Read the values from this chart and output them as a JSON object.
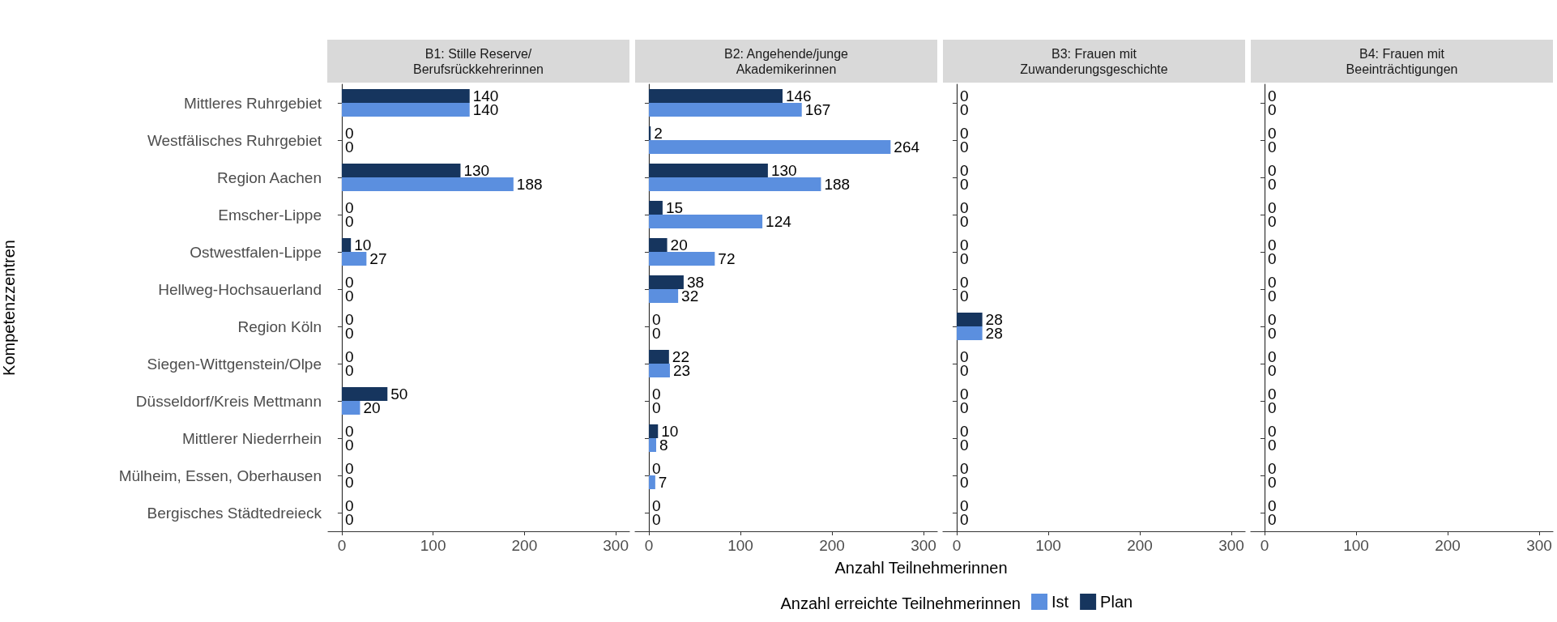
{
  "chart_data": [
    {
      "type": "bar",
      "orientation": "horizontal",
      "title": "B1: Stille Reserve/\nBerufsrückkehrerinnen",
      "ylabel": "Kompetenzzentren",
      "legend_title": "Anzahl erreichte Teilnehmerinnen",
      "legend": "bottom",
      "data_labels": true,
      "categories": [
        "Mittleres Ruhrgebiet",
        "Westfälisches Ruhrgebiet",
        "Region Aachen",
        "Emscher-Lippe",
        "Ostwestfalen-Lippe",
        "Hellweg-Hochsauerland",
        "Region Köln",
        "Siegen-Wittgenstein/Olpe",
        "Düsseldorf/Kreis Mettmann",
        "Mittlerer Niederrhein",
        "Mülheim, Essen, Oberhausen",
        "Bergisches Städtedreieck"
      ],
      "series": [
        {
          "name": "Ist",
          "color": "#5b8fdf",
          "values": [
            140,
            0,
            188,
            0,
            27,
            0,
            0,
            0,
            20,
            0,
            0,
            0
          ]
        },
        {
          "name": "Plan",
          "color": "#16355e",
          "values": [
            140,
            0,
            130,
            0,
            10,
            0,
            0,
            0,
            50,
            0,
            0,
            0
          ]
        }
      ],
      "xlim": [
        -15,
        315
      ],
      "xticks": [
        0,
        100,
        200,
        300
      ]
    },
    {
      "type": "bar",
      "orientation": "horizontal",
      "title": "B2: Angehende/junge\nAkademikerinnen",
      "xlabel": "Anzahl Teilnehmerinnen",
      "data_labels": true,
      "tick_labels": "x",
      "categories": [
        null,
        null,
        null,
        null,
        null,
        null,
        null,
        null,
        null,
        null,
        null,
        null
      ],
      "series": [
        {
          "color": "#5b8fdf",
          "values": [
            167,
            264,
            188,
            124,
            72,
            32,
            0,
            23,
            0,
            8,
            7,
            0
          ]
        },
        {
          "color": "#16355e",
          "values": [
            146,
            2,
            130,
            15,
            20,
            38,
            0,
            22,
            0,
            10,
            0,
            0
          ]
        }
      ],
      "xlim": [
        -15,
        315
      ],
      "xticks": [
        0,
        100,
        200,
        300
      ]
    },
    {
      "type": "bar",
      "orientation": "horizontal",
      "title": "B3: Frauen mit\nZuwanderungsgeschichte",
      "data_labels": true,
      "tick_labels": "x",
      "categories": [
        null,
        null,
        null,
        null,
        null,
        null,
        null,
        null,
        null,
        null,
        null,
        null
      ],
      "series": [
        {
          "color": "#5b8fdf",
          "values": [
            0,
            0,
            0,
            0,
            0,
            0,
            28,
            0,
            0,
            0,
            0,
            0
          ]
        },
        {
          "color": "#16355e",
          "values": [
            0,
            0,
            0,
            0,
            0,
            0,
            28,
            0,
            0,
            0,
            0,
            0
          ]
        }
      ],
      "xlim": [
        -15,
        315
      ],
      "xticks": [
        0,
        100,
        200,
        300
      ]
    },
    {
      "type": "bar",
      "orientation": "horizontal",
      "title": "B4: Frauen mit\nBeeinträchtigungen",
      "data_labels": true,
      "tick_labels": "x",
      "categories": [
        null,
        null,
        null,
        null,
        null,
        null,
        null,
        null,
        null,
        null,
        null,
        null
      ],
      "series": [
        {
          "color": "#5b8fdf",
          "values": [
            0,
            0,
            0,
            0,
            0,
            0,
            0,
            0,
            0,
            0,
            0,
            0
          ]
        },
        {
          "color": "#16355e",
          "values": [
            0,
            0,
            0,
            0,
            0,
            0,
            0,
            0,
            0,
            0,
            0,
            0
          ]
        }
      ],
      "xlim": [
        -15,
        315
      ],
      "xticks": [
        0,
        100,
        200,
        300
      ]
    }
  ]
}
